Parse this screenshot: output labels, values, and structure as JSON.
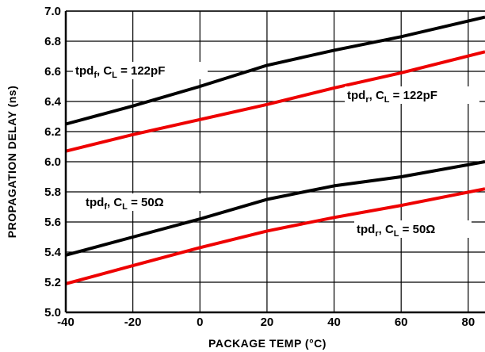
{
  "chart_data": {
    "type": "line",
    "xlabel": "PACKAGE TEMP (°C)",
    "ylabel": "PROPAGATION DELAY (ns)",
    "xlim": [
      -40,
      85
    ],
    "ylim": [
      5.0,
      7.0
    ],
    "grid": true,
    "xticks": [
      -40,
      -20,
      0,
      20,
      40,
      60,
      80
    ],
    "xtick_labels": [
      "-40",
      "-20",
      "0",
      "20",
      "40",
      "60",
      "80"
    ],
    "yticks": [
      5.0,
      5.2,
      5.4,
      5.6,
      5.8,
      6.0,
      6.2,
      6.4,
      6.6,
      6.8,
      7.0
    ],
    "ytick_labels": [
      "5.0",
      "5.2",
      "5.4",
      "5.6",
      "5.8",
      "6.0",
      "6.2",
      "6.4",
      "6.6",
      "6.8",
      "7.0"
    ],
    "series": [
      {
        "label_main": "tpd",
        "label_sub": "f",
        "label_mid": ", C",
        "label_sub2": "L",
        "label_tail": " = 122pF",
        "color": "#000000",
        "x": [
          -40,
          -20,
          0,
          20,
          40,
          60,
          85
        ],
        "y": [
          6.25,
          6.37,
          6.5,
          6.64,
          6.74,
          6.83,
          6.96
        ]
      },
      {
        "label_main": "tpd",
        "label_sub": "r",
        "label_mid": ", C",
        "label_sub2": "L",
        "label_tail": " = 122pF",
        "color": "#ee0000",
        "x": [
          -40,
          -20,
          0,
          20,
          40,
          60,
          85
        ],
        "y": [
          6.07,
          6.18,
          6.28,
          6.38,
          6.49,
          6.59,
          6.73
        ]
      },
      {
        "label_main": "tpd",
        "label_sub": "f",
        "label_mid": ", C",
        "label_sub2": "L",
        "label_tail": " = 50Ω",
        "color": "#000000",
        "x": [
          -40,
          -20,
          0,
          20,
          40,
          60,
          85
        ],
        "y": [
          5.38,
          5.5,
          5.62,
          5.75,
          5.84,
          5.9,
          6.0
        ]
      },
      {
        "label_main": "tpd",
        "label_sub": "r",
        "label_mid": ", C",
        "label_sub2": "L",
        "label_tail": " = 50Ω",
        "color": "#ee0000",
        "x": [
          -40,
          -20,
          0,
          20,
          40,
          60,
          85
        ],
        "y": [
          5.19,
          5.31,
          5.43,
          5.54,
          5.63,
          5.71,
          5.82
        ]
      }
    ]
  }
}
